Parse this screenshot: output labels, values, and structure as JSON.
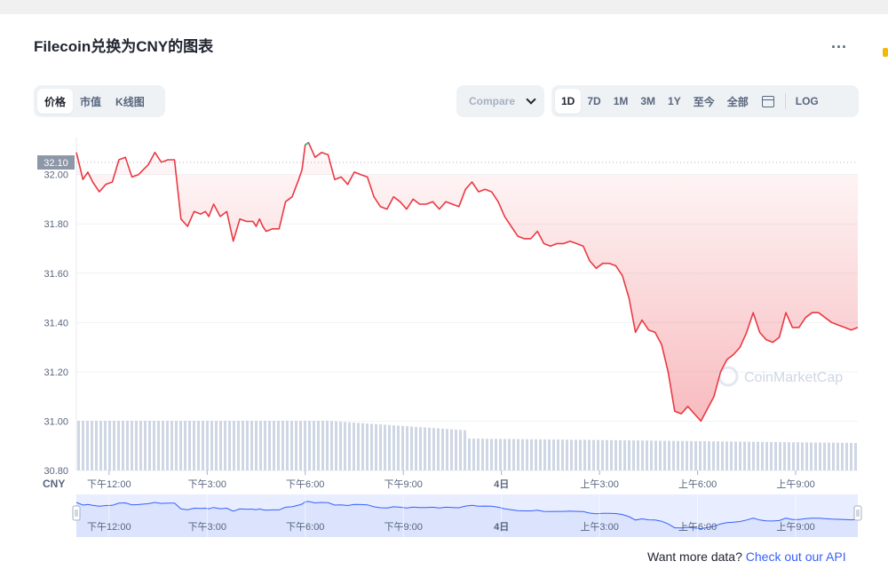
{
  "header": {
    "title": "Filecoin兑换为CNY的图表",
    "more_label": "..."
  },
  "view_tabs": [
    {
      "label": "价格",
      "active": true
    },
    {
      "label": "市值",
      "active": false
    },
    {
      "label": "K线图",
      "active": false
    }
  ],
  "compare": {
    "label": "Compare"
  },
  "range_tabs": [
    {
      "label": "1D",
      "active": true
    },
    {
      "label": "7D",
      "active": false
    },
    {
      "label": "1M",
      "active": false
    },
    {
      "label": "3M",
      "active": false
    },
    {
      "label": "1Y",
      "active": false
    },
    {
      "label": "至今",
      "active": false
    },
    {
      "label": "全部",
      "active": false
    }
  ],
  "log_label": "LOG",
  "footer": {
    "prefix": "Want more data? ",
    "link": "Check out our API"
  },
  "watermark": "CoinMarketCap",
  "chart_data": {
    "type": "line",
    "currency_label": "CNY",
    "current_price_label": "32.10",
    "ylim": [
      30.8,
      32.15
    ],
    "yticks": [
      32.0,
      31.8,
      31.6,
      31.4,
      31.2,
      31.0,
      30.8
    ],
    "ytick_labels": [
      "32.00",
      "31.80",
      "31.60",
      "31.40",
      "31.20",
      "31.00",
      "30.80"
    ],
    "xlim": [
      11.0,
      34.9
    ],
    "xticks": [
      12,
      15,
      18,
      21,
      24,
      27,
      30,
      33
    ],
    "xtick_labels": [
      "下午12:00",
      "下午3:00",
      "下午6:00",
      "下午9:00",
      "4日",
      "上午3:00",
      "上午6:00",
      "上午9:00"
    ],
    "colors": {
      "line": "#ea3943",
      "peak": "#16c784",
      "volume": "#cfd6e4",
      "nav_line": "#3861fb",
      "nav_fill": "#e8edff"
    },
    "series": [
      {
        "x": [
          11.0,
          11.2,
          11.35,
          11.5,
          11.7,
          11.9,
          12.1,
          12.3,
          12.5,
          12.7,
          12.9,
          13.05,
          13.2,
          13.4,
          13.6,
          13.8,
          14.0,
          14.2,
          14.4,
          14.6,
          14.8,
          14.95,
          15.05,
          15.2,
          15.4,
          15.6,
          15.8,
          16.0,
          16.2,
          16.4,
          16.5,
          16.6,
          16.7,
          16.8,
          17.0,
          17.2,
          17.4,
          17.6,
          17.8,
          17.9,
          18.0,
          18.1,
          18.3,
          18.5,
          18.7,
          18.9,
          19.1,
          19.3,
          19.5,
          19.7,
          19.9,
          20.1,
          20.3,
          20.5,
          20.7,
          20.9,
          21.1,
          21.3,
          21.5,
          21.7,
          21.9,
          22.1,
          22.3,
          22.5,
          22.7,
          22.9,
          23.1,
          23.3,
          23.5,
          23.7,
          23.9,
          24.1,
          24.3,
          24.5,
          24.7,
          24.9,
          25.1,
          25.3,
          25.5,
          25.7,
          25.9,
          26.1,
          26.3,
          26.5,
          26.7,
          26.9,
          27.1,
          27.3,
          27.5,
          27.7,
          27.9,
          28.1,
          28.3,
          28.5,
          28.7,
          28.9,
          29.1,
          29.3,
          29.5,
          29.7,
          29.9,
          30.1,
          30.3,
          30.5,
          30.7,
          30.9,
          31.1,
          31.3,
          31.5,
          31.7,
          31.9,
          32.1,
          32.3,
          32.5,
          32.7,
          32.9,
          33.1,
          33.3,
          33.5,
          33.7,
          33.9,
          34.1,
          34.3,
          34.5,
          34.7,
          34.9
        ],
        "y": [
          32.09,
          31.98,
          32.01,
          31.97,
          31.93,
          31.96,
          31.97,
          32.06,
          32.07,
          31.99,
          32.0,
          32.02,
          32.04,
          32.09,
          32.05,
          32.06,
          32.06,
          31.82,
          31.79,
          31.85,
          31.84,
          31.85,
          31.83,
          31.88,
          31.83,
          31.85,
          31.73,
          31.82,
          31.81,
          31.81,
          31.79,
          31.82,
          31.79,
          31.77,
          31.78,
          31.78,
          31.89,
          31.91,
          31.98,
          32.02,
          32.12,
          32.13,
          32.07,
          32.09,
          32.08,
          31.98,
          31.99,
          31.96,
          32.01,
          32.0,
          31.99,
          31.91,
          31.87,
          31.86,
          31.91,
          31.89,
          31.86,
          31.9,
          31.88,
          31.88,
          31.89,
          31.86,
          31.89,
          31.88,
          31.87,
          31.94,
          31.97,
          31.93,
          31.94,
          31.93,
          31.89,
          31.83,
          31.79,
          31.75,
          31.74,
          31.74,
          31.77,
          31.72,
          31.71,
          31.72,
          31.72,
          31.73,
          31.72,
          31.71,
          31.65,
          31.62,
          31.64,
          31.64,
          31.63,
          31.59,
          31.5,
          31.36,
          31.41,
          31.37,
          31.36,
          31.31,
          31.2,
          31.04,
          31.03,
          31.06,
          31.03,
          31.0,
          31.05,
          31.1,
          31.2,
          31.25,
          31.27,
          31.3,
          31.36,
          31.44,
          31.36,
          31.33,
          31.32,
          31.34,
          31.44,
          31.38,
          31.38,
          31.42,
          31.44,
          31.44,
          31.42,
          31.4,
          31.39,
          31.38,
          31.37,
          31.38
        ]
      }
    ]
  }
}
